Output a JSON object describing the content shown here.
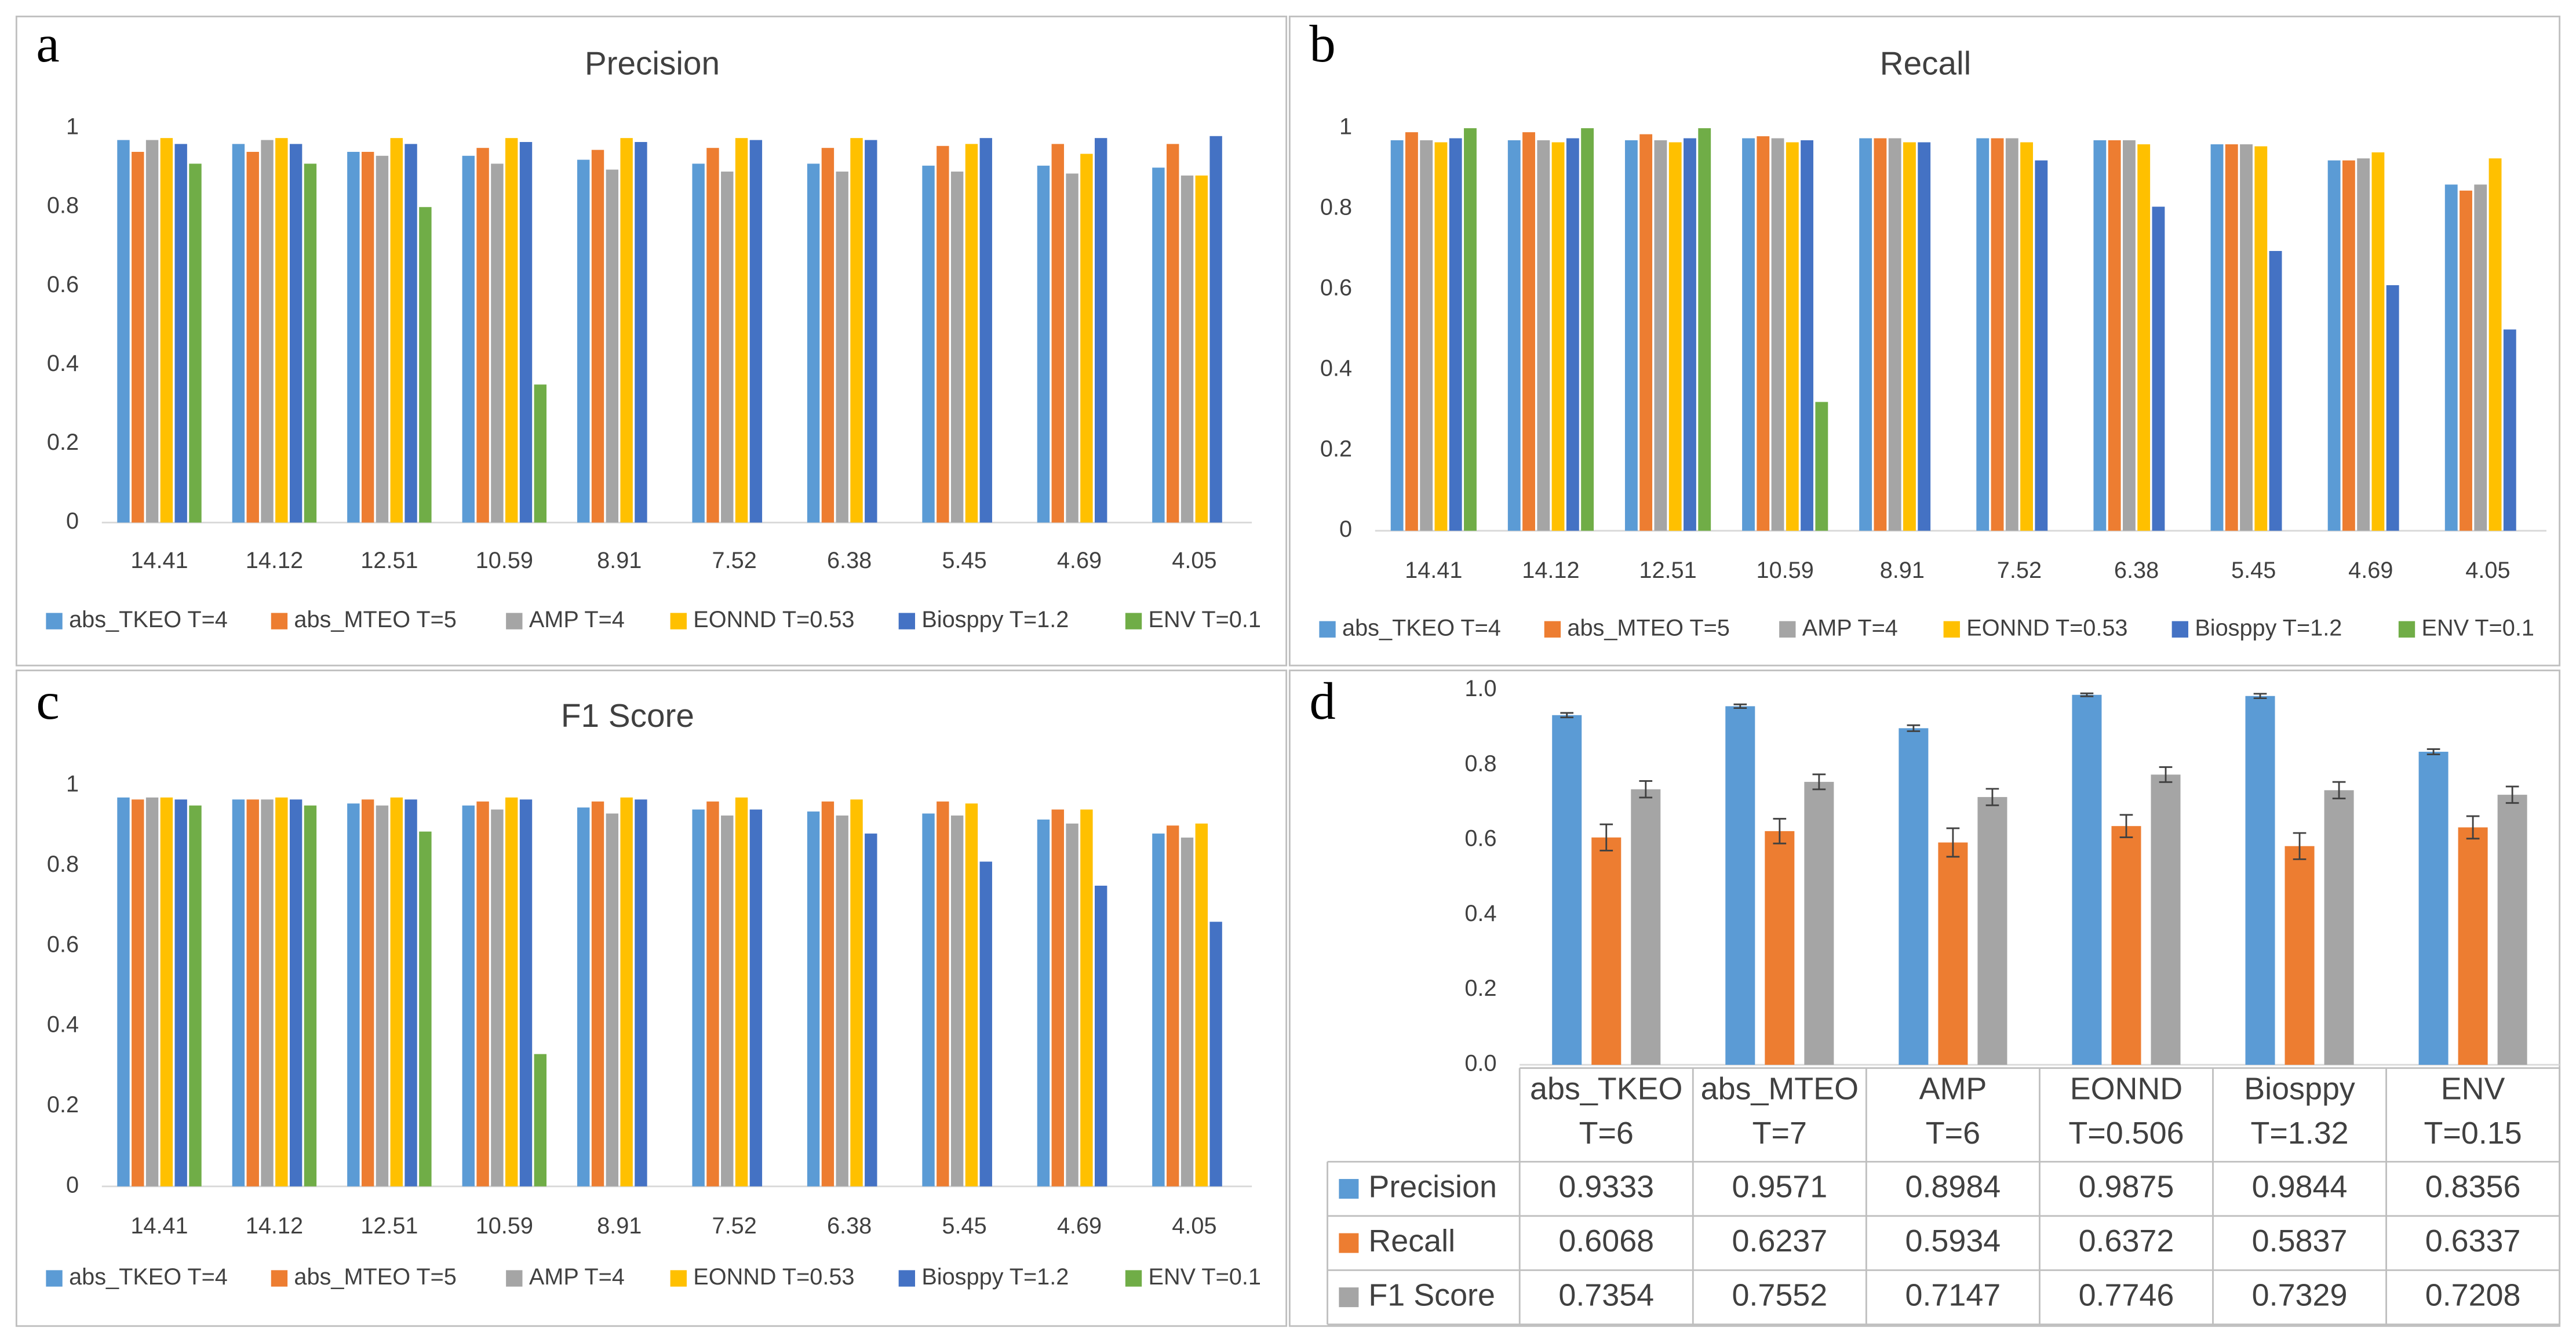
{
  "chart_data": [
    {
      "type": "bar",
      "label": "a",
      "title": "Precision",
      "categories": [
        "14.41",
        "14.12",
        "12.51",
        "10.59",
        "8.91",
        "7.52",
        "6.38",
        "5.45",
        "4.69",
        "4.05"
      ],
      "ylim": [
        0,
        1
      ],
      "yticks": [
        0,
        0.2,
        0.4,
        0.6,
        0.8,
        1
      ],
      "grid": false,
      "legend": "bottom",
      "series": [
        {
          "name": "abs_TKEO T=4",
          "color": "#5b9bd5",
          "values": [
            0.97,
            0.96,
            0.94,
            0.93,
            0.92,
            0.91,
            0.91,
            0.905,
            0.905,
            0.9
          ]
        },
        {
          "name": "abs_MTEO T=5",
          "color": "#ed7d31",
          "values": [
            0.94,
            0.94,
            0.94,
            0.95,
            0.945,
            0.95,
            0.95,
            0.955,
            0.96,
            0.96
          ]
        },
        {
          "name": "AMP T=4",
          "color": "#a5a5a5",
          "values": [
            0.97,
            0.97,
            0.93,
            0.91,
            0.895,
            0.89,
            0.89,
            0.89,
            0.885,
            0.88
          ]
        },
        {
          "name": "EONND T=0.53",
          "color": "#ffc000",
          "values": [
            0.975,
            0.975,
            0.975,
            0.975,
            0.975,
            0.975,
            0.975,
            0.96,
            0.935,
            0.88
          ]
        },
        {
          "name": "Biosppy T=1.2",
          "color": "#4472c4",
          "values": [
            0.96,
            0.96,
            0.96,
            0.965,
            0.965,
            0.97,
            0.97,
            0.975,
            0.975,
            0.98
          ]
        },
        {
          "name": "ENV T=0.1",
          "color": "#70ad47",
          "values": [
            0.91,
            0.91,
            0.8,
            0.35,
            null,
            null,
            null,
            null,
            null,
            null
          ]
        }
      ]
    },
    {
      "type": "bar",
      "label": "b",
      "title": "Recall",
      "categories": [
        "14.41",
        "14.12",
        "12.51",
        "10.59",
        "8.91",
        "7.52",
        "6.38",
        "5.45",
        "4.69",
        "4.05"
      ],
      "ylim": [
        0,
        1
      ],
      "yticks": [
        0,
        0.2,
        0.4,
        0.6,
        0.8,
        1
      ],
      "grid": false,
      "legend": "bottom",
      "series": [
        {
          "name": "abs_TKEO T=4",
          "color": "#5b9bd5",
          "values": [
            0.97,
            0.97,
            0.97,
            0.975,
            0.975,
            0.975,
            0.97,
            0.96,
            0.92,
            0.86
          ]
        },
        {
          "name": "abs_MTEO T=5",
          "color": "#ed7d31",
          "values": [
            0.99,
            0.99,
            0.985,
            0.98,
            0.975,
            0.975,
            0.97,
            0.96,
            0.92,
            0.845
          ]
        },
        {
          "name": "AMP T=4",
          "color": "#a5a5a5",
          "values": [
            0.97,
            0.97,
            0.97,
            0.975,
            0.975,
            0.975,
            0.97,
            0.96,
            0.925,
            0.86
          ]
        },
        {
          "name": "EONND T=0.53",
          "color": "#ffc000",
          "values": [
            0.965,
            0.965,
            0.965,
            0.965,
            0.965,
            0.965,
            0.96,
            0.955,
            0.94,
            0.925
          ]
        },
        {
          "name": "Biosppy T=1.2",
          "color": "#4472c4",
          "values": [
            0.975,
            0.975,
            0.975,
            0.97,
            0.965,
            0.92,
            0.805,
            0.695,
            0.61,
            0.5
          ]
        },
        {
          "name": "ENV T=0.1",
          "color": "#70ad47",
          "values": [
            1.0,
            1.0,
            1.0,
            0.32,
            null,
            null,
            null,
            null,
            null,
            null
          ]
        }
      ]
    },
    {
      "type": "bar",
      "label": "c",
      "title": "F1 Score",
      "categories": [
        "14.41",
        "14.12",
        "12.51",
        "10.59",
        "8.91",
        "7.52",
        "6.38",
        "5.45",
        "4.69",
        "4.05"
      ],
      "ylim": [
        0,
        1
      ],
      "yticks": [
        0,
        0.2,
        0.4,
        0.6,
        0.8,
        1
      ],
      "grid": false,
      "legend": "bottom",
      "series": [
        {
          "name": "abs_TKEO T=4",
          "color": "#5b9bd5",
          "values": [
            0.97,
            0.965,
            0.955,
            0.95,
            0.945,
            0.94,
            0.935,
            0.93,
            0.915,
            0.88
          ]
        },
        {
          "name": "abs_MTEO T=5",
          "color": "#ed7d31",
          "values": [
            0.965,
            0.965,
            0.965,
            0.96,
            0.96,
            0.96,
            0.96,
            0.96,
            0.94,
            0.9
          ]
        },
        {
          "name": "AMP T=4",
          "color": "#a5a5a5",
          "values": [
            0.97,
            0.965,
            0.95,
            0.94,
            0.93,
            0.925,
            0.925,
            0.925,
            0.905,
            0.87
          ]
        },
        {
          "name": "EONND T=0.53",
          "color": "#ffc000",
          "values": [
            0.97,
            0.97,
            0.97,
            0.97,
            0.97,
            0.97,
            0.965,
            0.955,
            0.94,
            0.905
          ]
        },
        {
          "name": "Biosppy T=1.2",
          "color": "#4472c4",
          "values": [
            0.965,
            0.965,
            0.965,
            0.965,
            0.965,
            0.94,
            0.88,
            0.81,
            0.75,
            0.66
          ]
        },
        {
          "name": "ENV T=0.1",
          "color": "#70ad47",
          "values": [
            0.95,
            0.95,
            0.885,
            0.33,
            null,
            null,
            null,
            null,
            null,
            null
          ]
        }
      ]
    },
    {
      "type": "bar-table",
      "label": "d",
      "categories": [
        [
          "abs_TKEO",
          "T=6"
        ],
        [
          "abs_MTEO",
          "T=7"
        ],
        [
          "AMP",
          "T=6"
        ],
        [
          "EONND",
          "T=0.506"
        ],
        [
          "Biosppy",
          "T=1.32"
        ],
        [
          "ENV",
          "T=0.15"
        ]
      ],
      "ylim": [
        0,
        1
      ],
      "yticks": [
        {
          "value": 0,
          "label": "0.0"
        },
        {
          "value": 0.2,
          "label": "0.2"
        },
        {
          "value": 0.4,
          "label": "0.4"
        },
        {
          "value": 0.6,
          "label": "0.6"
        },
        {
          "value": 0.8,
          "label": "0.8"
        },
        {
          "value": 1,
          "label": "1.0"
        }
      ],
      "grid": false,
      "series": [
        {
          "name": "Precision",
          "color": "#5b9bd5",
          "values": [
            0.9333,
            0.9571,
            0.8984,
            0.9875,
            0.9844,
            0.8356
          ],
          "errors": [
            0.006,
            0.005,
            0.008,
            0.004,
            0.006,
            0.007
          ]
        },
        {
          "name": "Recall",
          "color": "#ed7d31",
          "values": [
            0.6068,
            0.6237,
            0.5934,
            0.6372,
            0.5837,
            0.6337
          ],
          "errors": [
            0.035,
            0.033,
            0.038,
            0.03,
            0.035,
            0.03
          ]
        },
        {
          "name": "F1 Score",
          "color": "#a5a5a5",
          "values": [
            0.7354,
            0.7552,
            0.7147,
            0.7746,
            0.7329,
            0.7208
          ],
          "errors": [
            0.022,
            0.02,
            0.022,
            0.02,
            0.022,
            0.022
          ]
        }
      ]
    }
  ]
}
